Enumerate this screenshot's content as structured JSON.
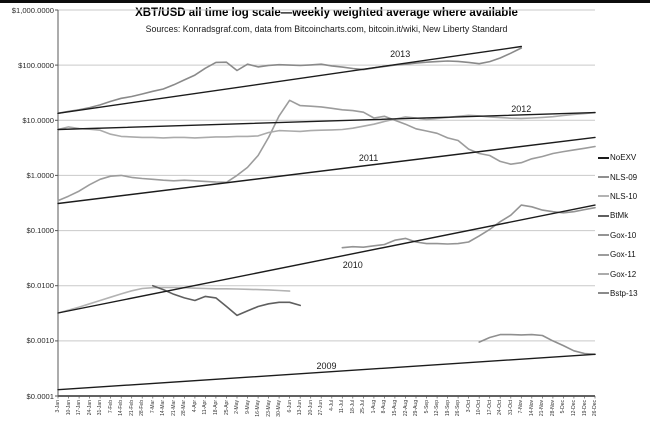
{
  "chart_data": {
    "type": "line",
    "title": "XBT/USD all time log scale—weekly weighted average where available",
    "subtitle": "Sources: Konradsgraf.com, data from Bitcoincharts.com, bitcoin.it/wiki, New Liberty Standard",
    "y_scale": "log",
    "ylim": [
      0.0001,
      1000
    ],
    "grid": "horizontal-decades",
    "legend_position": "right",
    "y_ticks": [
      {
        "label": "$1,000.0000",
        "value": 1000
      },
      {
        "label": "$100.0000",
        "value": 100
      },
      {
        "label": "$10.0000",
        "value": 10
      },
      {
        "label": "$1.0000",
        "value": 1
      },
      {
        "label": "$0.1000",
        "value": 0.1
      },
      {
        "label": "$0.0100",
        "value": 0.01
      },
      {
        "label": "$0.0010",
        "value": 0.001
      },
      {
        "label": "$0.0001",
        "value": 0.0001
      }
    ],
    "x_tick_labels": [
      "3-Jan",
      "10-Jan",
      "17-Jan",
      "24-Jan",
      "31-Jan",
      "7-Feb",
      "14-Feb",
      "21-Feb",
      "28-Feb",
      "7-Mar",
      "14-Mar",
      "21-Mar",
      "28-Mar",
      "4-Apr",
      "11-Apr",
      "18-Apr",
      "25-Apr",
      "2-May",
      "9-May",
      "16-May",
      "23-May",
      "30-May",
      "6-Jun",
      "13-Jun",
      "20-Jun",
      "27-Jun",
      "4-Jul",
      "11-Jul",
      "18-Jul",
      "25-Jul",
      "1-Aug",
      "8-Aug",
      "15-Aug",
      "22-Aug",
      "29-Aug",
      "5-Sep",
      "12-Sep",
      "19-Sep",
      "26-Sep",
      "3-Oct",
      "10-Oct",
      "17-Oct",
      "24-Oct",
      "31-Oct",
      "7-Nov",
      "14-Nov",
      "21-Nov",
      "28-Nov",
      "5-Dec",
      "12-Dec",
      "19-Dec",
      "26-Dec"
    ],
    "legend": [
      {
        "name": "NoEXV",
        "color": "#1c1c1c"
      },
      {
        "name": "NLS-09",
        "color": "#8f8f8f"
      },
      {
        "name": "NLS-10",
        "color": "#b3b3b3"
      },
      {
        "name": "BtMk",
        "color": "#5f5f5f"
      },
      {
        "name": "Gox-10",
        "color": "#949494"
      },
      {
        "name": "Gox-11",
        "color": "#9c9c9c"
      },
      {
        "name": "Gox-12",
        "color": "#ababab"
      },
      {
        "name": "Bstp-13",
        "color": "#8a8a8a"
      }
    ],
    "annotations": [
      {
        "label": "2013",
        "week": 33.5,
        "value": 155
      },
      {
        "label": "2012",
        "week": 45.0,
        "value": 15.5
      },
      {
        "label": "2011",
        "week": 30.5,
        "value": 2.05
      },
      {
        "label": "2010",
        "week": 29.0,
        "value": 0.023
      },
      {
        "label": "2009",
        "week": 26.5,
        "value": 0.00034
      }
    ],
    "series": [
      {
        "name": "NoEXV trend 2009",
        "color": "#1c1c1c",
        "width": 1.4,
        "start_week": 1,
        "values_are_endpoints": true,
        "points": [
          [
            1,
            0.00013
          ],
          [
            52,
            0.00057
          ]
        ]
      },
      {
        "name": "NoEXV trend 2010",
        "color": "#1c1c1c",
        "width": 1.4,
        "start_week": 1,
        "values_are_endpoints": true,
        "points": [
          [
            1,
            0.0032
          ],
          [
            52,
            0.29
          ]
        ]
      },
      {
        "name": "NoEXV trend 2011",
        "color": "#1c1c1c",
        "width": 1.4,
        "start_week": 1,
        "values_are_endpoints": true,
        "points": [
          [
            1,
            0.31
          ],
          [
            52,
            4.9
          ]
        ]
      },
      {
        "name": "NoEXV trend 2012",
        "color": "#1c1c1c",
        "width": 1.4,
        "start_week": 1,
        "values_are_endpoints": true,
        "points": [
          [
            1,
            6.8
          ],
          [
            52,
            13.8
          ]
        ]
      },
      {
        "name": "NoEXV trend 2013",
        "color": "#1c1c1c",
        "width": 1.4,
        "start_week": 1,
        "values_are_endpoints": true,
        "points": [
          [
            1,
            13.4
          ],
          [
            45,
            218
          ]
        ]
      },
      {
        "name": "NLS-09",
        "color": "#8f8f8f",
        "width": 1.6,
        "start_week": 41,
        "values": [
          0.00095,
          0.00115,
          0.0013,
          0.0013,
          0.00128,
          0.0013,
          0.00125,
          0.001,
          0.00082,
          0.00066,
          0.00059,
          0.00057
        ]
      },
      {
        "name": "NLS-10",
        "color": "#b3b3b3",
        "width": 1.6,
        "start_week": 1,
        "values": [
          0.0032,
          0.0036,
          0.0041,
          0.0047,
          0.0054,
          0.0062,
          0.0071,
          0.0081,
          0.0089,
          0.0092,
          0.0093,
          0.0093,
          0.0092,
          0.009,
          0.0089,
          0.0088,
          0.0088,
          0.0087,
          0.0086,
          0.0085,
          0.0084,
          0.0082,
          0.008
        ]
      },
      {
        "name": "BtMk",
        "color": "#5f5f5f",
        "width": 1.6,
        "start_week": 10,
        "values": [
          0.01,
          0.0085,
          0.007,
          0.006,
          0.0054,
          0.0064,
          0.006,
          0.0042,
          0.0029,
          0.0035,
          0.0042,
          0.0047,
          0.005,
          0.005,
          0.0044
        ]
      },
      {
        "name": "Gox-10",
        "color": "#949494",
        "width": 1.6,
        "start_week": 28,
        "values": [
          0.049,
          0.051,
          0.05,
          0.053,
          0.056,
          0.067,
          0.072,
          0.062,
          0.058,
          0.058,
          0.057,
          0.058,
          0.062,
          0.08,
          0.105,
          0.145,
          0.19,
          0.29,
          0.27,
          0.235,
          0.22,
          0.21,
          0.22,
          0.24,
          0.26
        ]
      },
      {
        "name": "Gox-11",
        "color": "#9c9c9c",
        "width": 1.6,
        "start_week": 1,
        "values": [
          0.35,
          0.42,
          0.52,
          0.68,
          0.85,
          0.97,
          1.0,
          0.92,
          0.88,
          0.85,
          0.82,
          0.8,
          0.82,
          0.8,
          0.78,
          0.76,
          0.75,
          1.0,
          1.4,
          2.3,
          4.9,
          12,
          23,
          18.5,
          18,
          17.5,
          16.5,
          15.5,
          15,
          14,
          11,
          11.8,
          10,
          8.5,
          7,
          6.4,
          5.8,
          4.8,
          4.3,
          3.0,
          2.5,
          2.3,
          1.8,
          1.6,
          1.7,
          2.0,
          2.2,
          2.5,
          2.7,
          2.9,
          3.1,
          3.35
        ]
      },
      {
        "name": "Gox-12",
        "color": "#ababab",
        "width": 1.6,
        "start_week": 1,
        "values": [
          6.8,
          7.6,
          7.1,
          6.9,
          6.6,
          5.6,
          5.1,
          5.0,
          4.9,
          4.9,
          4.8,
          4.9,
          4.9,
          4.8,
          4.9,
          5.0,
          5.0,
          5.1,
          5.1,
          5.2,
          6.0,
          6.5,
          6.4,
          6.3,
          6.5,
          6.6,
          6.7,
          6.8,
          7.2,
          7.8,
          8.5,
          9.5,
          10.5,
          11.5,
          11.0,
          10.3,
          10.8,
          11.3,
          11.8,
          12.3,
          12.0,
          11.5,
          11.2,
          10.9,
          10.8,
          11.0,
          11.3,
          11.6,
          12.2,
          12.8,
          13.2,
          13.8
        ]
      },
      {
        "name": "Bstp-13",
        "color": "#8a8a8a",
        "width": 1.6,
        "start_week": 1,
        "values": [
          13.4,
          14.5,
          15.5,
          17,
          19,
          22,
          25,
          27,
          30,
          33.5,
          37,
          44,
          54,
          66,
          88,
          112,
          113,
          80,
          104,
          93,
          99,
          102,
          100,
          99,
          101,
          104,
          97,
          92,
          87,
          83,
          89,
          95,
          100,
          104,
          109,
          113,
          116,
          119,
          117,
          112,
          106,
          116,
          135,
          165,
          205
        ]
      }
    ]
  }
}
